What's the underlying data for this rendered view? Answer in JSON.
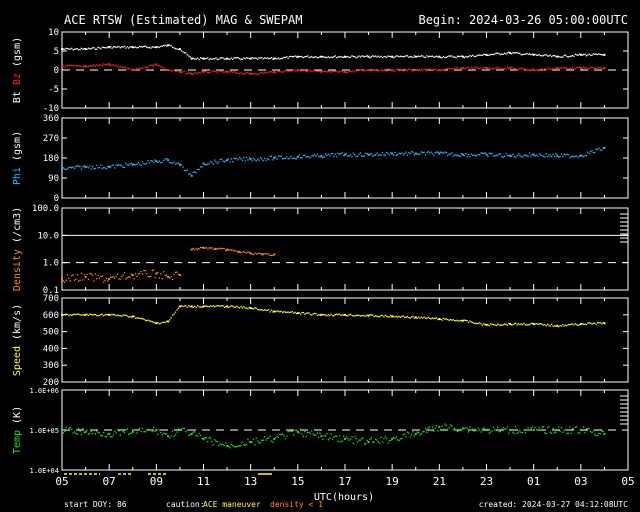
{
  "header": {
    "title": "ACE RTSW (Estimated) MAG & SWEPAM",
    "begin": "Begin: 2024-03-26 05:00:00UTC"
  },
  "footer": {
    "start_doy": "start DOY:  86",
    "caution_label": "caution:",
    "caution_maneuver": "ACE maneuver",
    "caution_density": "density < 1",
    "created": "created: 2024-03-27 04:12:08UTC"
  },
  "colors": {
    "bt": "#ffffff",
    "bz": "#ff2020",
    "phi": "#30b8ff",
    "density": "#ff8a20",
    "speed": "#ffff30",
    "temp": "#20e020",
    "maneuver": "#ffff30"
  },
  "chart_data": {
    "type": "scatter",
    "x_axis": {
      "label": "UTC(hours)",
      "range_hours": [
        5,
        29
      ],
      "tick_labels": [
        "05",
        "07",
        "09",
        "11",
        "13",
        "15",
        "17",
        "19",
        "21",
        "23",
        "01",
        "03",
        "05"
      ]
    },
    "panels": [
      {
        "id": "mag",
        "ylabel_bt": "Bt",
        "ylabel_bz": "Bz",
        "ylabel_unit": "(gsm)",
        "ylim": [
          -10,
          10
        ],
        "ticks": [
          "10",
          "5",
          "0",
          "-5",
          "-10"
        ],
        "dashed_at": 0,
        "series": [
          {
            "name": "Bt",
            "x": [
              5,
              6,
              7,
              8,
              9,
              9.5,
              10,
              10.5,
              11,
              12,
              13,
              14,
              15,
              16,
              17,
              18,
              19,
              20,
              21,
              22,
              23,
              24,
              25,
              26,
              27,
              28
            ],
            "values": [
              5.5,
              5.5,
              6,
              6,
              6,
              6.5,
              5.5,
              3,
              3,
              3,
              3,
              3,
              3.5,
              3.5,
              3.5,
              3.5,
              3.5,
              3.5,
              3.5,
              3.5,
              4,
              4.5,
              4,
              3.5,
              4,
              4
            ]
          },
          {
            "name": "Bz",
            "x": [
              5,
              6,
              7,
              8,
              9,
              9.5,
              10,
              10.5,
              11,
              12,
              13,
              14,
              15,
              16,
              17,
              18,
              19,
              20,
              21,
              22,
              23,
              24,
              25,
              26,
              27,
              28
            ],
            "values": [
              1,
              1,
              1.5,
              0,
              1.5,
              0,
              -0.5,
              -1,
              -0.5,
              -0.5,
              -1,
              -0.5,
              0,
              -0.5,
              -0.5,
              0,
              0,
              0,
              0,
              0.5,
              0.5,
              0.5,
              0,
              0.5,
              0.5,
              0.5
            ]
          }
        ]
      },
      {
        "id": "phi",
        "ylabel": "Phi",
        "ylabel_unit": "(gsm)",
        "ylim": [
          0,
          360
        ],
        "ticks": [
          "360",
          "270",
          "180",
          "90",
          "0"
        ],
        "series": [
          {
            "name": "Phi",
            "x": [
              5,
              6,
              7,
              8,
              9,
              9.5,
              10,
              10.5,
              11,
              12,
              13,
              14,
              15,
              16,
              17,
              18,
              19,
              20,
              21,
              22,
              23,
              24,
              25,
              26,
              27,
              28
            ],
            "values": [
              130,
              140,
              140,
              150,
              165,
              170,
              150,
              100,
              155,
              170,
              175,
              180,
              185,
              190,
              195,
              195,
              200,
              200,
              200,
              195,
              195,
              190,
              195,
              190,
              190,
              225
            ]
          }
        ]
      },
      {
        "id": "density",
        "ylabel": "Density",
        "ylabel_unit": "(/cm3)",
        "ylim": [
          0.1,
          100
        ],
        "scale": "log",
        "ticks": [
          "100.0",
          "10.0",
          "1.0",
          "0.1"
        ],
        "dashed_at": 1,
        "series": [
          {
            "name": "Density",
            "x": [
              10.5,
              11,
              11.5,
              12,
              12.5,
              13,
              13.5,
              14
            ],
            "values": [
              3,
              3.5,
              3.2,
              3,
              2.5,
              2.2,
              2,
              2
            ]
          },
          {
            "name": "Density < 1",
            "x": [
              5,
              6,
              7,
              8,
              9,
              9.5,
              10
            ],
            "values": [
              0.25,
              0.3,
              0.25,
              0.35,
              0.4,
              0.3,
              0.35
            ]
          }
        ]
      },
      {
        "id": "speed",
        "ylabel": "Speed",
        "ylabel_unit": "(km/s)",
        "ylim": [
          200,
          700
        ],
        "ticks": [
          "700",
          "600",
          "500",
          "400",
          "300",
          "200"
        ],
        "series": [
          {
            "name": "Speed",
            "x": [
              5,
              6,
              7,
              8,
              9,
              9.5,
              10,
              10.5,
              11,
              12,
              13,
              14,
              15,
              16,
              17,
              18,
              19,
              20,
              21,
              22,
              23,
              24,
              25,
              26,
              27,
              28
            ],
            "values": [
              600,
              600,
              600,
              590,
              550,
              560,
              650,
              650,
              650,
              650,
              640,
              620,
              610,
              600,
              600,
              595,
              590,
              585,
              575,
              565,
              540,
              545,
              545,
              535,
              545,
              550
            ]
          }
        ]
      },
      {
        "id": "temp",
        "ylabel": "Temp",
        "ylabel_unit": "(K)",
        "ylim": [
          10000,
          1000000
        ],
        "scale": "log",
        "ticks": [
          "1.0E+06",
          "1.0E+05",
          "1.0E+04"
        ],
        "dashed_at": 100000,
        "series": [
          {
            "name": "Temp",
            "x": [
              5,
              6,
              7,
              8,
              9,
              9.5,
              10,
              10.5,
              11,
              12,
              13,
              14,
              15,
              16,
              17,
              18,
              19,
              20,
              21,
              22,
              23,
              24,
              25,
              26,
              27,
              28
            ],
            "values": [
              100000,
              90000,
              80000,
              90000,
              100000,
              70000,
              100000,
              80000,
              60000,
              40000,
              50000,
              60000,
              90000,
              70000,
              60000,
              50000,
              60000,
              80000,
              120000,
              110000,
              100000,
              100000,
              100000,
              100000,
              100000,
              80000
            ]
          }
        ]
      }
    ]
  }
}
